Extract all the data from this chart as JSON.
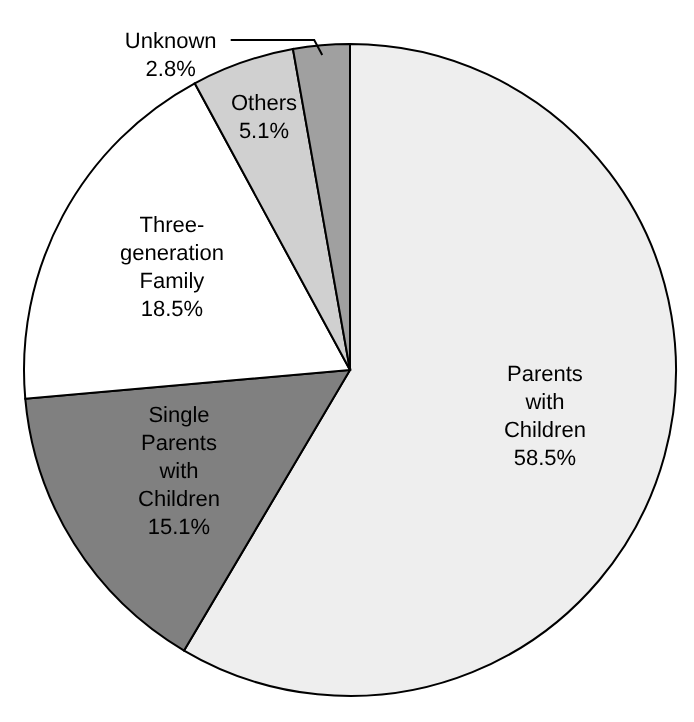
{
  "chart_data": {
    "type": "pie",
    "categories": [
      "Parents with Children",
      "Single Parents with Children",
      "Three-generation Family",
      "Others",
      "Unknown"
    ],
    "values": [
      58.5,
      15.1,
      18.5,
      5.1,
      2.8
    ],
    "value_labels": [
      "58.5%",
      "15.1%",
      "18.5%",
      "5.1%",
      "2.8%"
    ],
    "colors": [
      "#eeeeee",
      "#808080",
      "#ffffff",
      "#d0d0d0",
      "#a0a0a0"
    ]
  }
}
